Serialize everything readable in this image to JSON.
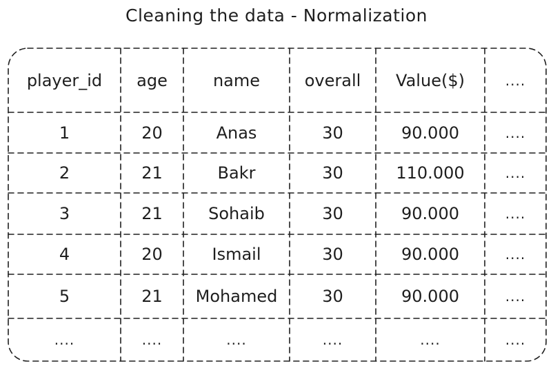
{
  "title": "Cleaning the data - Normalization",
  "table": {
    "columns": [
      "player_id",
      "age",
      "name",
      "overall",
      "Value($)",
      "...."
    ],
    "rows": [
      [
        "1",
        "20",
        "Anas",
        "30",
        "90.000",
        "...."
      ],
      [
        "2",
        "21",
        "Bakr",
        "30",
        "110.000",
        "...."
      ],
      [
        "3",
        "21",
        "Sohaib",
        "30",
        "90.000",
        "...."
      ],
      [
        "4",
        "20",
        "Ismail",
        "30",
        "90.000",
        "...."
      ],
      [
        "5",
        "21",
        "Mohamed",
        "30",
        "90.000",
        "...."
      ],
      [
        "....",
        "....",
        "....",
        "....",
        "....",
        "...."
      ]
    ]
  },
  "colors": {
    "stroke": "#1e1e1e",
    "background": "#ffffff"
  }
}
